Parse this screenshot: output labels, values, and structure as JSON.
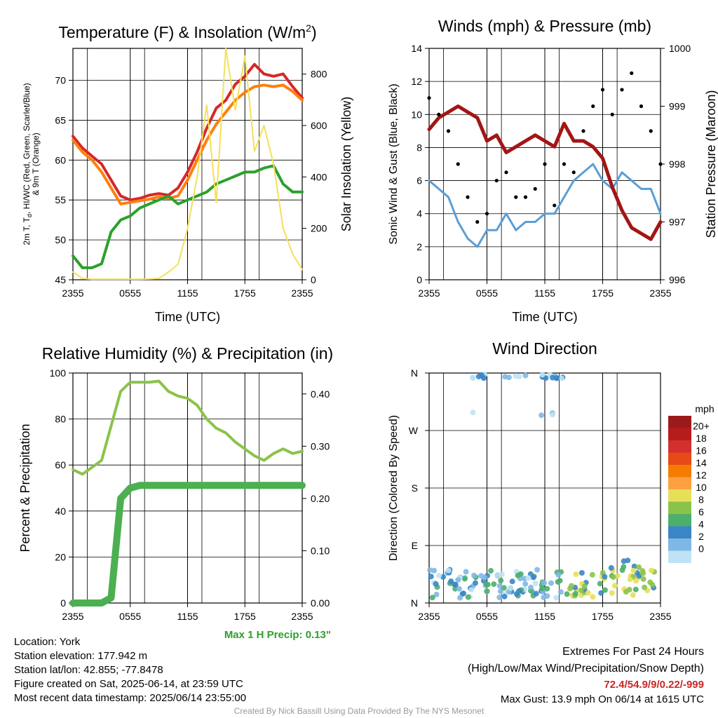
{
  "chart_data": [
    {
      "id": "temp",
      "type": "line",
      "title": "Temperature (F) & Insolation (W/m",
      "title_sup": "2",
      "title_close": ")",
      "xlabel": "Time (UTC)",
      "ylabel_lines": [
        "2m T, T",
        "d",
        ", HI/WC (Red, Green, Scarlet/Blue)",
        "& 9m T (Orange)"
      ],
      "y2label": "Solar Insolation (Yellow)",
      "x_ticks": [
        "2355",
        "0555",
        "1155",
        "1755",
        "2355"
      ],
      "ylim": [
        45,
        74
      ],
      "y_ticks": [
        45,
        50,
        55,
        60,
        65,
        70
      ],
      "y2lim": [
        0,
        900
      ],
      "y2_ticks": [
        0,
        200,
        400,
        600,
        800
      ],
      "x": [
        0,
        1,
        2,
        3,
        4,
        5,
        6,
        7,
        8,
        9,
        10,
        11,
        12,
        13,
        14,
        15,
        16,
        17,
        18,
        19,
        20,
        21,
        22,
        23,
        24
      ],
      "series": [
        {
          "color": "#d62728",
          "width": 4,
          "axis": "left",
          "values": [
            63,
            61.5,
            60.5,
            59.5,
            57.5,
            55.5,
            55,
            55.2,
            55.6,
            55.8,
            55.6,
            56.5,
            58.5,
            61,
            64,
            66.5,
            67.5,
            69.5,
            70.5,
            72,
            70.8,
            70.5,
            70.8,
            69.2,
            67.8
          ]
        },
        {
          "color": "#ff7f0e",
          "width": 4,
          "axis": "left",
          "values": [
            62.5,
            61,
            60,
            58.5,
            56.5,
            54.5,
            54.7,
            54.9,
            55.1,
            55.4,
            55.2,
            55.5,
            57.5,
            60,
            62.5,
            64.5,
            66,
            67.5,
            68.5,
            69.2,
            69.4,
            69.2,
            69.4,
            68.6,
            67.5
          ]
        },
        {
          "color": "#2ca02c",
          "width": 4,
          "axis": "left",
          "values": [
            48,
            46.5,
            46.5,
            47,
            51,
            52.5,
            53,
            54,
            54.5,
            55,
            55.5,
            54.5,
            55,
            55.5,
            56,
            57,
            57.5,
            58,
            58.5,
            58.5,
            59,
            59.3,
            57,
            56,
            56
          ]
        },
        {
          "color": "#f5e05a",
          "width": 2,
          "axis": "right",
          "values": [
            30,
            5,
            2,
            2,
            2,
            2,
            2,
            2,
            3,
            5,
            30,
            60,
            200,
            400,
            680,
            300,
            900,
            660,
            870,
            500,
            600,
            450,
            200,
            100,
            40
          ]
        }
      ]
    },
    {
      "id": "wind",
      "type": "line",
      "title": "Winds (mph) & Pressure (mb)",
      "xlabel": "Time (UTC)",
      "ylabel": "Sonic Wind & Gust (Blue, Black)",
      "y2label": "Station Pressure (Maroon)",
      "x_ticks": [
        "2355",
        "0555",
        "1155",
        "1755",
        "2355"
      ],
      "ylim": [
        0,
        14
      ],
      "y_ticks": [
        0,
        2,
        4,
        6,
        8,
        10,
        12,
        14
      ],
      "y2lim": [
        996,
        1000
      ],
      "y2_ticks": [
        996,
        997,
        998,
        999,
        1000
      ],
      "x": [
        0,
        1,
        2,
        3,
        4,
        5,
        6,
        7,
        8,
        9,
        10,
        11,
        12,
        13,
        14,
        15,
        16,
        17,
        18,
        19,
        20,
        21,
        22,
        23,
        24
      ],
      "series": [
        {
          "color": "#5a9ed6",
          "width": 3,
          "axis": "left",
          "values": [
            6,
            5.5,
            5,
            3.5,
            2.5,
            2,
            3,
            3,
            4,
            3,
            3.5,
            3.5,
            4,
            4,
            5,
            6,
            6.5,
            7,
            6,
            5.5,
            6.5,
            6,
            5.5,
            5.5,
            4
          ]
        },
        {
          "color": "#a31515",
          "width": 5,
          "axis": "right",
          "values": [
            998.6,
            998.8,
            998.9,
            999.0,
            998.9,
            998.8,
            998.4,
            998.5,
            998.2,
            998.3,
            998.4,
            998.5,
            998.4,
            998.3,
            998.7,
            998.4,
            998.4,
            998.3,
            998.1,
            997.6,
            997.2,
            996.9,
            996.8,
            996.7,
            997.0
          ]
        },
        {
          "color": "#000000",
          "width": 0,
          "axis": "left",
          "mode": "markers",
          "values": [
            11,
            10,
            9,
            7,
            5,
            3.5,
            4,
            6,
            6.5,
            5,
            5,
            5.5,
            7,
            4.5,
            7,
            6.5,
            9,
            10.5,
            11.5,
            10,
            11.5,
            12.5,
            10.5,
            9,
            7
          ]
        }
      ]
    },
    {
      "id": "rh",
      "type": "line",
      "title": "Relative Humidity (%) & Precipitation (in)",
      "ylabel": "Percent & Precipitation",
      "x_ticks": [
        "2355",
        "0555",
        "1155",
        "1755",
        "2355"
      ],
      "ylim": [
        0,
        100
      ],
      "y_ticks": [
        0,
        20,
        40,
        60,
        80,
        100
      ],
      "y2lim": [
        0,
        0.44
      ],
      "y2_ticks": [
        "0.00",
        "0.10",
        "0.20",
        "0.30",
        "0.40"
      ],
      "x": [
        0,
        1,
        2,
        3,
        4,
        5,
        6,
        7,
        8,
        9,
        10,
        11,
        12,
        13,
        14,
        15,
        16,
        17,
        18,
        19,
        20,
        21,
        22,
        23,
        24
      ],
      "series": [
        {
          "color": "#8bc34a",
          "width": 4,
          "axis": "left",
          "values": [
            58,
            56,
            59,
            62,
            77,
            92,
            96,
            96,
            96,
            96.5,
            92,
            90,
            89,
            86,
            80,
            76,
            74,
            70,
            67,
            64,
            62,
            65,
            67,
            65,
            66
          ]
        },
        {
          "color": "#4caf50",
          "width": 10,
          "axis": "right",
          "values": [
            0,
            0,
            0,
            0,
            0.01,
            0.2,
            0.22,
            0.225,
            0.225,
            0.225,
            0.225,
            0.225,
            0.225,
            0.225,
            0.225,
            0.225,
            0.225,
            0.225,
            0.225,
            0.225,
            0.225,
            0.225,
            0.225,
            0.225,
            0.225
          ]
        }
      ],
      "annotation": "Max 1 H Precip: 0.13\""
    },
    {
      "id": "dir",
      "type": "scatter",
      "title": "Wind Direction",
      "ylabel": "Direction (Colored By Speed)",
      "x_ticks": [
        "2355",
        "0555",
        "1155",
        "1755",
        "2355"
      ],
      "y_ticks": [
        "N",
        "E",
        "S",
        "W",
        "N"
      ],
      "ylim": [
        0,
        360
      ],
      "legend_title": "mph",
      "legend_labels": [
        "20+",
        "18",
        "16",
        "14",
        "12",
        "10",
        "8",
        "6",
        "4",
        "2",
        "0"
      ],
      "legend_colors": [
        "#9b1b1b",
        "#b71c1c",
        "#d32f2f",
        "#e64a19",
        "#f57c00",
        "#ffa040",
        "#e6e058",
        "#8bc34a",
        "#4caf6a",
        "#3a86c6",
        "#7fb8e6",
        "#bfe3f5"
      ],
      "points_groups": [
        {
          "x_range": [
            0,
            24
          ],
          "y_base": 30,
          "y_spread": 45,
          "note": "east/north-east sector"
        },
        {
          "x_range": [
            4.5,
            14
          ],
          "y_base": 355,
          "y_spread": 8,
          "note": "north sector"
        }
      ]
    }
  ],
  "station": {
    "location": "Location: York",
    "elevation": "Station elevation: 177.942 m",
    "latlon": "Station lat/lon: 42.855; -77.8478",
    "created": "Figure created on Sat, 2025-06-14, at 23:59 UTC",
    "recent": "Most recent data timestamp: 2025/06/14 23:55:00"
  },
  "extremes": {
    "title": "Extremes For Past 24 Hours",
    "subtitle": "(High/Low/Max Wind/Precipitation/Snow Depth)",
    "values": "72.4/54.9/9/0.22/-999",
    "gust": "Max Gust: 13.9 mph On 06/14 at 1615 UTC"
  },
  "credit": "Created By Nick Bassill Using Data Provided By The NYS Mesonet",
  "colors": {
    "values_red": "#c62828",
    "annot_green": "#2e9e2e",
    "credit_gray": "#999999"
  }
}
